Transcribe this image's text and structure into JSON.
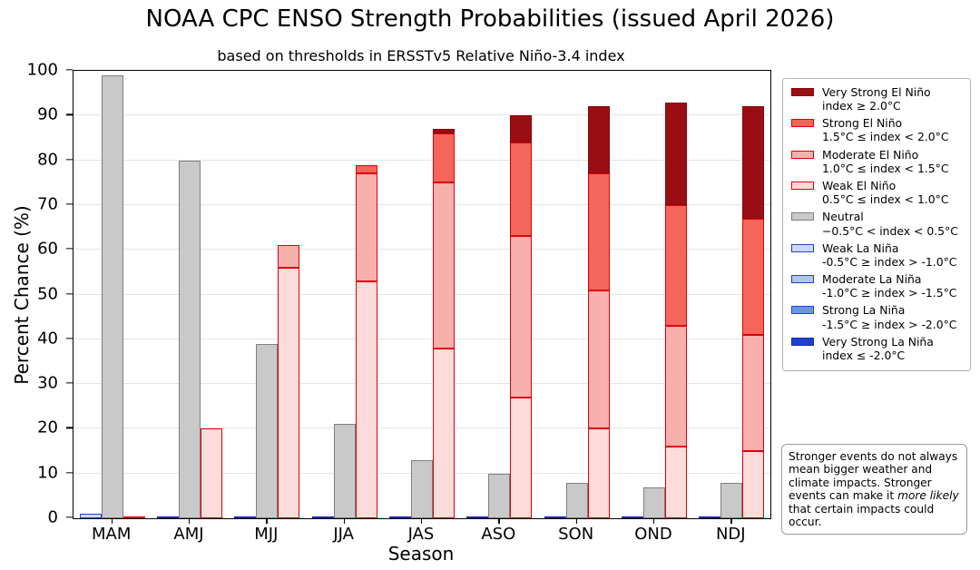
{
  "title": "NOAA CPC ENSO Strength Probabilities (issued April 2026)",
  "subtitle": "based on thresholds in ERSSTv5 Relative Niño-3.4 index",
  "axes": {
    "x_label": "Season",
    "y_label": "Percent Chance (%)"
  },
  "note": {
    "pre_italic": "Stronger events do not always mean bigger weather and climate impacts. Stronger events can make it ",
    "italic": "more likely",
    "post_italic": " that certain impacts could occur."
  },
  "colors": {
    "background": "#ffffff",
    "axis_frame": "#000000",
    "gridline": "#e4e4e4",
    "el_nino_edge": "#e00008",
    "la_nina_edge": "#2244cc",
    "neutral_edge": "#7f7f7f"
  },
  "chart_data": {
    "type": "bar",
    "stacked": true,
    "title": "NOAA CPC ENSO Strength Probabilities (issued April 2026)",
    "subtitle": "based on thresholds in ERSSTv5 Relative Niño-3.4 index",
    "xlabel": "Season",
    "ylabel": "Percent Chance (%)",
    "ylim": [
      0,
      100
    ],
    "yticks": [
      0,
      10,
      20,
      30,
      40,
      50,
      60,
      70,
      80,
      90,
      100
    ],
    "grid": "horizontal",
    "legend_position": "outside-right",
    "categories": [
      "MAM",
      "AMJ",
      "MJJ",
      "JJA",
      "JAS",
      "ASO",
      "SON",
      "OND",
      "NDJ"
    ],
    "bar_groups": [
      "la_nina",
      "neutral",
      "el_nino"
    ],
    "series": [
      {
        "name": "Very Strong El Niño",
        "threshold": "index ≥ 2.0°C",
        "group": "el_nino",
        "stack_order": 3,
        "fill": "#9a0e13",
        "edge": "#8a040b",
        "values": [
          0,
          0,
          0,
          0,
          1,
          6,
          15,
          23,
          25
        ]
      },
      {
        "name": "Strong El Niño",
        "threshold": "1.5°C ≤ index < 2.0°C",
        "group": "el_nino",
        "stack_order": 2,
        "fill": "#f4655c",
        "edge": "#e00008",
        "values": [
          0,
          0,
          0,
          2,
          11,
          21,
          26,
          27,
          26
        ]
      },
      {
        "name": "Moderate El Niño",
        "threshold": "1.0°C ≤ index < 1.5°C",
        "group": "el_nino",
        "stack_order": 1,
        "fill": "#f8b0ac",
        "edge": "#e00008",
        "values": [
          0,
          0,
          5,
          24,
          37,
          36,
          31,
          27,
          26
        ]
      },
      {
        "name": "Weak El Niño",
        "threshold": "0.5°C ≤ index < 1.0°C",
        "group": "el_nino",
        "stack_order": 0,
        "fill": "#fcdcda",
        "edge": "#e00008",
        "values": [
          0,
          20,
          56,
          53,
          38,
          27,
          20,
          16,
          15
        ]
      },
      {
        "name": "Neutral",
        "threshold": "−0.5°C < index < 0.5°C",
        "group": "neutral",
        "stack_order": 0,
        "fill": "#c9c9c9",
        "edge": "#7f7f7f",
        "values": [
          99,
          80,
          39,
          21,
          13,
          10,
          8,
          7,
          8
        ]
      },
      {
        "name": "Weak La Niña",
        "threshold": "-0.5°C ≥ index > -1.0°C",
        "group": "la_nina",
        "stack_order": 0,
        "fill": "#ccd9f2",
        "edge": "#2244cc",
        "values": [
          1,
          0,
          0,
          0,
          0,
          0,
          0,
          0,
          0
        ]
      },
      {
        "name": "Moderate La Niña",
        "threshold": "-1.0°C ≥ index > -1.5°C",
        "group": "la_nina",
        "stack_order": 1,
        "fill": "#aec6ee",
        "edge": "#2244cc",
        "values": [
          0,
          0,
          0,
          0,
          0,
          0,
          0,
          0,
          0
        ]
      },
      {
        "name": "Strong La Niña",
        "threshold": "-1.5°C ≥ index > -2.0°C",
        "group": "la_nina",
        "stack_order": 2,
        "fill": "#6b96e8",
        "edge": "#2244cc",
        "values": [
          0,
          0,
          0,
          0,
          0,
          0,
          0,
          0,
          0
        ]
      },
      {
        "name": "Very Strong La Niña",
        "threshold": "index ≤ -2.0°C",
        "group": "la_nina",
        "stack_order": 3,
        "fill": "#1f3fd0",
        "edge": "#1630a8",
        "values": [
          0,
          0,
          0,
          0,
          0,
          0,
          0,
          0,
          0
        ]
      }
    ],
    "zero_bar_sliver_colors": {
      "el_nino": "#dd0000",
      "la_nina": "#2020b0",
      "neutral": "#7f7f7f"
    }
  }
}
